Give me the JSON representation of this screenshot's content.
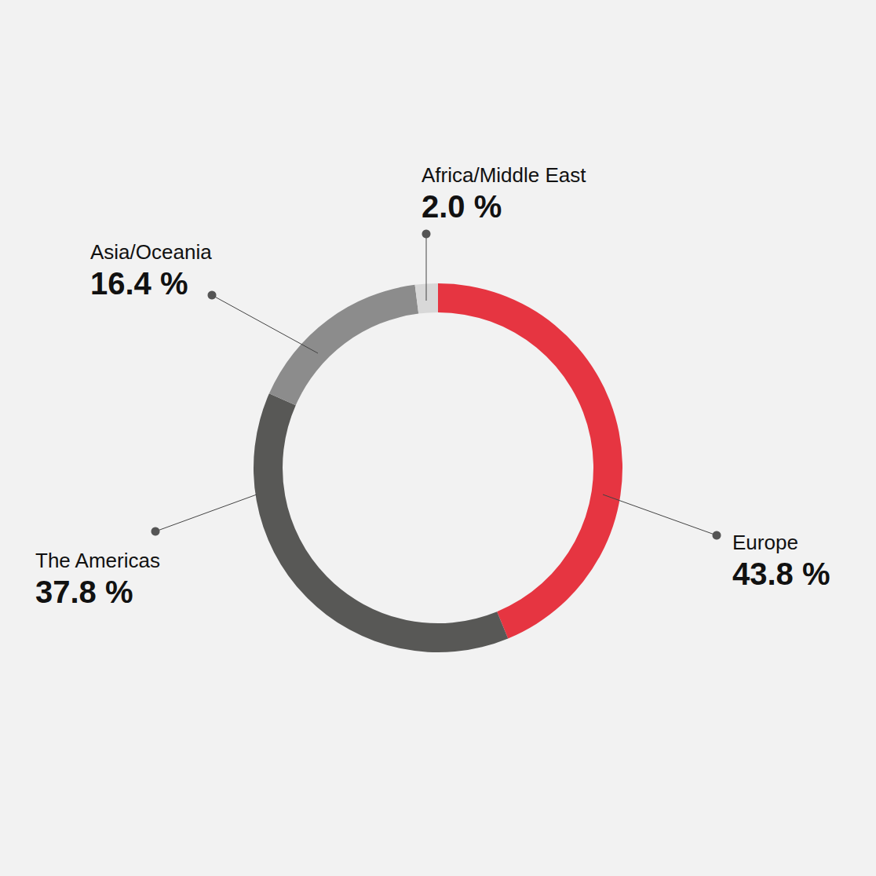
{
  "chart_data": {
    "type": "pie",
    "categories": [
      "Europe",
      "The Americas",
      "Asia/Oceania",
      "Africa/Middle East"
    ],
    "values": [
      43.8,
      37.8,
      16.4,
      2.0
    ],
    "value_labels": [
      "43.8 %",
      "37.8 %",
      "16.4 %",
      "2.0 %"
    ],
    "colors": [
      "#e63541",
      "#585856",
      "#8c8c8c",
      "#d8d8d8"
    ],
    "data_labels": true
  }
}
